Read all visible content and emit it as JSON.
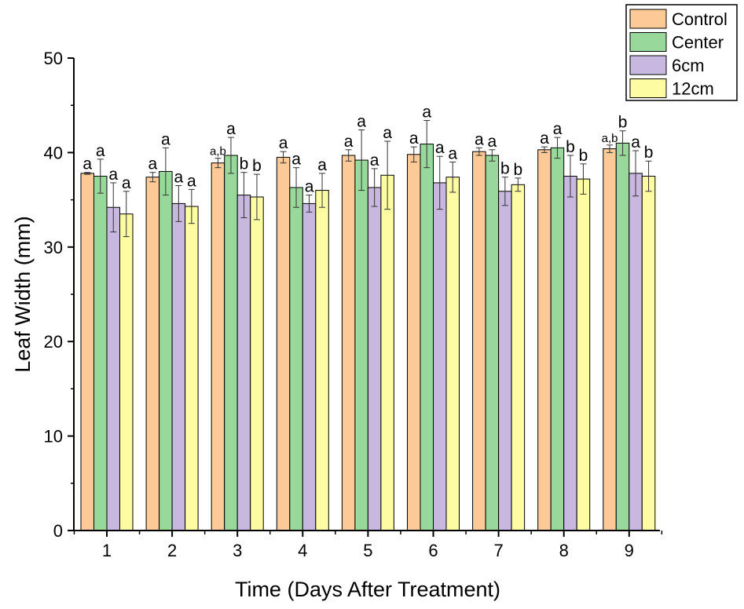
{
  "chart_data": {
    "type": "bar",
    "title": "",
    "xlabel": "Time (Days After Treatment)",
    "ylabel": "Leaf Width (mm)",
    "ylim": [
      0,
      50
    ],
    "yticks": [
      "0",
      "10",
      "20",
      "30",
      "40",
      "50"
    ],
    "categories": [
      "1",
      "2",
      "3",
      "4",
      "5",
      "6",
      "7",
      "8",
      "9"
    ],
    "legend_position": "top-right",
    "series": [
      {
        "name": "Control",
        "color": "#fdc996",
        "values": [
          37.8,
          37.4,
          38.9,
          39.5,
          39.7,
          39.8,
          40.1,
          40.3,
          40.4
        ],
        "errors": [
          0.1,
          0.5,
          0.5,
          0.6,
          0.6,
          0.8,
          0.4,
          0.3,
          0.4
        ],
        "labels": [
          "a",
          "a",
          "a,b",
          "a",
          "a",
          "a",
          "a",
          "a",
          "a,b"
        ]
      },
      {
        "name": "Center",
        "color": "#98d89a",
        "values": [
          37.5,
          38.0,
          39.7,
          36.3,
          39.2,
          40.9,
          39.7,
          40.5,
          41.0
        ],
        "errors": [
          1.8,
          2.5,
          1.9,
          2.1,
          3.2,
          2.5,
          0.6,
          1.1,
          1.3
        ],
        "labels": [
          "a",
          "a",
          "a",
          "a",
          "a",
          "a",
          "a",
          "a",
          "b"
        ]
      },
      {
        "name": "6cm",
        "color": "#c8b8e0",
        "values": [
          34.2,
          34.6,
          35.5,
          34.6,
          36.3,
          36.8,
          35.9,
          37.5,
          37.8
        ],
        "errors": [
          2.6,
          1.9,
          2.4,
          0.9,
          2.0,
          2.8,
          1.5,
          2.2,
          2.4
        ],
        "labels": [
          "a",
          "a",
          "b",
          "a",
          "a",
          "a",
          "b",
          "b",
          "a"
        ]
      },
      {
        "name": "12cm",
        "color": "#fdfca3",
        "values": [
          33.5,
          34.3,
          35.3,
          36.0,
          37.6,
          37.4,
          36.6,
          37.2,
          37.5
        ],
        "errors": [
          2.4,
          1.8,
          2.4,
          1.8,
          3.6,
          1.6,
          0.7,
          1.6,
          1.6
        ],
        "labels": [
          "a",
          "a",
          "b",
          "a",
          "a",
          "a",
          "b",
          "b",
          "b"
        ]
      }
    ]
  }
}
